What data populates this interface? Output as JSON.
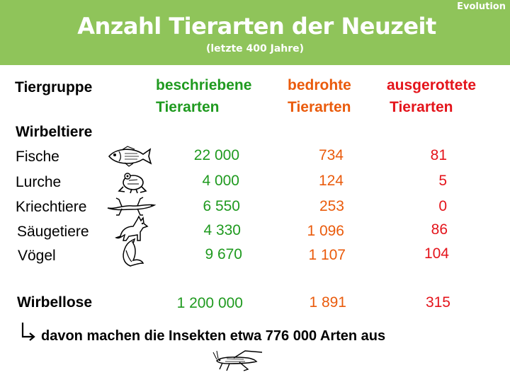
{
  "header": {
    "corner_label": "Evolution",
    "title": "Anzahl Tierarten der Neuzeit",
    "subtitle": "(letzte 400 Jahre)"
  },
  "columns": {
    "group": "Tiergruppe",
    "described_line1": "beschriebene",
    "described_line2": "Tierarten",
    "threatened_line1": "bedrohte",
    "threatened_line2": "Tierarten",
    "extinct_line1": "ausgerottete",
    "extinct_line2": "Tierarten"
  },
  "vertebrates_label": "Wirbeltiere",
  "rows": [
    {
      "name": "Fische",
      "icon": "fish-icon",
      "described": "22 000",
      "threatened": "734",
      "extinct": "81"
    },
    {
      "name": "Lurche",
      "icon": "frog-icon",
      "described": "4 000",
      "threatened": "124",
      "extinct": "5"
    },
    {
      "name": "Kriechtiere",
      "icon": "lizard-icon",
      "described": "6 550",
      "threatened": "253",
      "extinct": "0"
    },
    {
      "name": "Säugetiere",
      "icon": "fox-icon",
      "described": "4 330",
      "threatened": "1 096",
      "extinct": "86"
    },
    {
      "name": "Vögel",
      "icon": "bird-icon",
      "described": "9 670",
      "threatened": "1 107",
      "extinct": "104"
    }
  ],
  "invertebrates": {
    "name": "Wirbellose",
    "described": "1 200 000",
    "threatened": "1 891",
    "extinct": "315"
  },
  "note": "davon machen die Insekten etwa 776 000 Arten aus",
  "colors": {
    "header_bg": "#8fc45a",
    "described": "#1f9a1f",
    "threatened": "#ea5b0c",
    "extinct": "#e4141b"
  }
}
